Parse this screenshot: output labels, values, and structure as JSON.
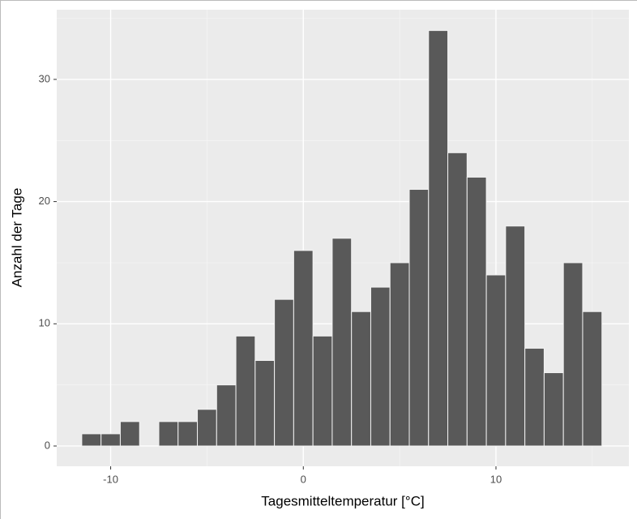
{
  "chart_data": {
    "type": "histogram",
    "x_label": "Tagesmitteltemperatur [°C]",
    "y_label": "Anzahl der Tage",
    "bins": [
      -11.5,
      -10.5,
      -9.5,
      -8.5,
      -7.5,
      -6.5,
      -5.5,
      -4.5,
      -3.5,
      -2.5,
      -1.5,
      -0.5,
      0.5,
      1.5,
      2.5,
      3.5,
      4.5,
      5.5,
      6.5,
      7.5,
      8.5,
      9.5,
      10.5,
      11.5,
      12.5,
      13.5,
      14.5,
      15.5
    ],
    "counts": [
      1,
      1,
      2,
      0,
      2,
      2,
      3,
      5,
      9,
      7,
      12,
      16,
      9,
      17,
      11,
      13,
      15,
      21,
      34,
      24,
      22,
      14,
      18,
      8,
      6,
      15,
      11
    ],
    "color": "#595959",
    "xlim": [
      -12.8,
      16.9
    ],
    "xticks": [
      -10,
      0,
      10
    ],
    "ylim": [
      -1.66,
      35.7
    ],
    "yticks": [
      0,
      10,
      20,
      30
    ],
    "grid": true,
    "minor_grid": true
  }
}
